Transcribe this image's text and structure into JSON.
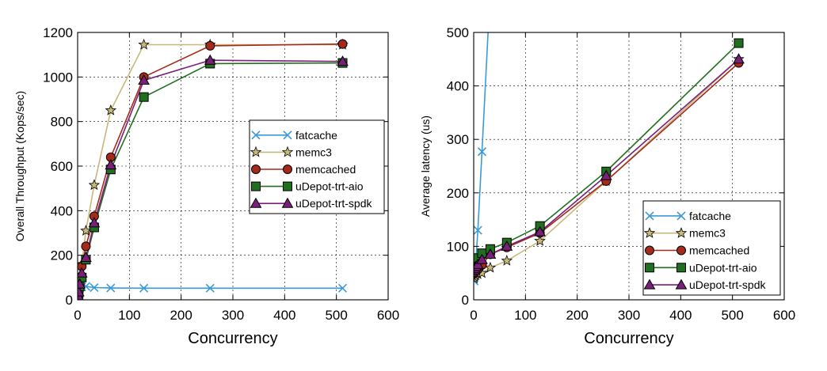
{
  "series_style": {
    "fatcache": {
      "color": "#3a9ad9",
      "marker": "x"
    },
    "memc3": {
      "color": "#c8b87a",
      "marker": "star"
    },
    "memcached": {
      "color": "#a52a1a",
      "marker": "circle"
    },
    "uDepot-trt-aio": {
      "color": "#1f6f1f",
      "marker": "square"
    },
    "uDepot-trt-spdk": {
      "color": "#7a1f7a",
      "marker": "triangle"
    }
  },
  "chart_data": [
    {
      "type": "line",
      "xlabel": "Concurrency",
      "ylabel": "Overall Throughput (Kops/sec)",
      "xlim": [
        0,
        600
      ],
      "ylim": [
        0,
        1200
      ],
      "xticks": [
        0,
        100,
        200,
        300,
        400,
        500,
        600
      ],
      "yticks": [
        0,
        200,
        400,
        600,
        800,
        1000,
        1200
      ],
      "grid": true,
      "legend_position": "right-middle",
      "series": [
        {
          "name": "fatcache",
          "x": [
            1,
            2,
            4,
            8,
            16,
            32,
            64,
            128,
            256,
            512
          ],
          "y": [
            30,
            45,
            55,
            58,
            60,
            55,
            53,
            52,
            52,
            52
          ]
        },
        {
          "name": "memc3",
          "x": [
            1,
            2,
            4,
            8,
            16,
            32,
            64,
            128,
            256,
            512
          ],
          "y": [
            25,
            45,
            85,
            160,
            310,
            515,
            850,
            1145,
            1145,
            1145
          ]
        },
        {
          "name": "memcached",
          "x": [
            1,
            2,
            4,
            8,
            16,
            32,
            64,
            128,
            256,
            512
          ],
          "y": [
            20,
            40,
            80,
            150,
            240,
            375,
            640,
            1000,
            1140,
            1148
          ]
        },
        {
          "name": "uDepot-trt-aio",
          "x": [
            1,
            2,
            4,
            8,
            16,
            32,
            64,
            128,
            256,
            512
          ],
          "y": [
            15,
            30,
            60,
            100,
            180,
            325,
            585,
            910,
            1060,
            1063
          ]
        },
        {
          "name": "uDepot-trt-spdk",
          "x": [
            1,
            2,
            4,
            8,
            16,
            32,
            64,
            128,
            256,
            512
          ],
          "y": [
            18,
            35,
            70,
            120,
            190,
            345,
            605,
            985,
            1075,
            1070
          ]
        }
      ]
    },
    {
      "type": "line",
      "xlabel": "Concurrency",
      "ylabel": "Average latency (us)",
      "xlim": [
        0,
        600
      ],
      "ylim": [
        0,
        500
      ],
      "xticks": [
        0,
        100,
        200,
        300,
        400,
        500,
        600
      ],
      "yticks": [
        0,
        100,
        200,
        300,
        400,
        500
      ],
      "grid": true,
      "legend_position": "bottom-right",
      "series": [
        {
          "name": "fatcache",
          "x": [
            1,
            2,
            4,
            8,
            16,
            32
          ],
          "y": [
            35,
            45,
            70,
            130,
            277,
            580
          ]
        },
        {
          "name": "memc3",
          "x": [
            1,
            2,
            4,
            8,
            16,
            32,
            64,
            128,
            256,
            512
          ],
          "y": [
            40,
            43,
            46,
            48,
            50,
            60,
            73,
            110,
            222,
            450
          ]
        },
        {
          "name": "memcached",
          "x": [
            1,
            2,
            4,
            8,
            16,
            32,
            64,
            128,
            256,
            512
          ],
          "y": [
            50,
            52,
            55,
            57,
            65,
            85,
            98,
            125,
            222,
            443
          ]
        },
        {
          "name": "uDepot-trt-aio",
          "x": [
            1,
            2,
            4,
            8,
            16,
            32,
            64,
            128,
            256,
            512
          ],
          "y": [
            65,
            68,
            72,
            78,
            87,
            95,
            107,
            138,
            240,
            480
          ]
        },
        {
          "name": "uDepot-trt-spdk",
          "x": [
            1,
            2,
            4,
            8,
            16,
            32,
            64,
            128,
            256,
            512
          ],
          "y": [
            55,
            58,
            62,
            66,
            75,
            85,
            100,
            127,
            232,
            450
          ]
        }
      ]
    }
  ]
}
